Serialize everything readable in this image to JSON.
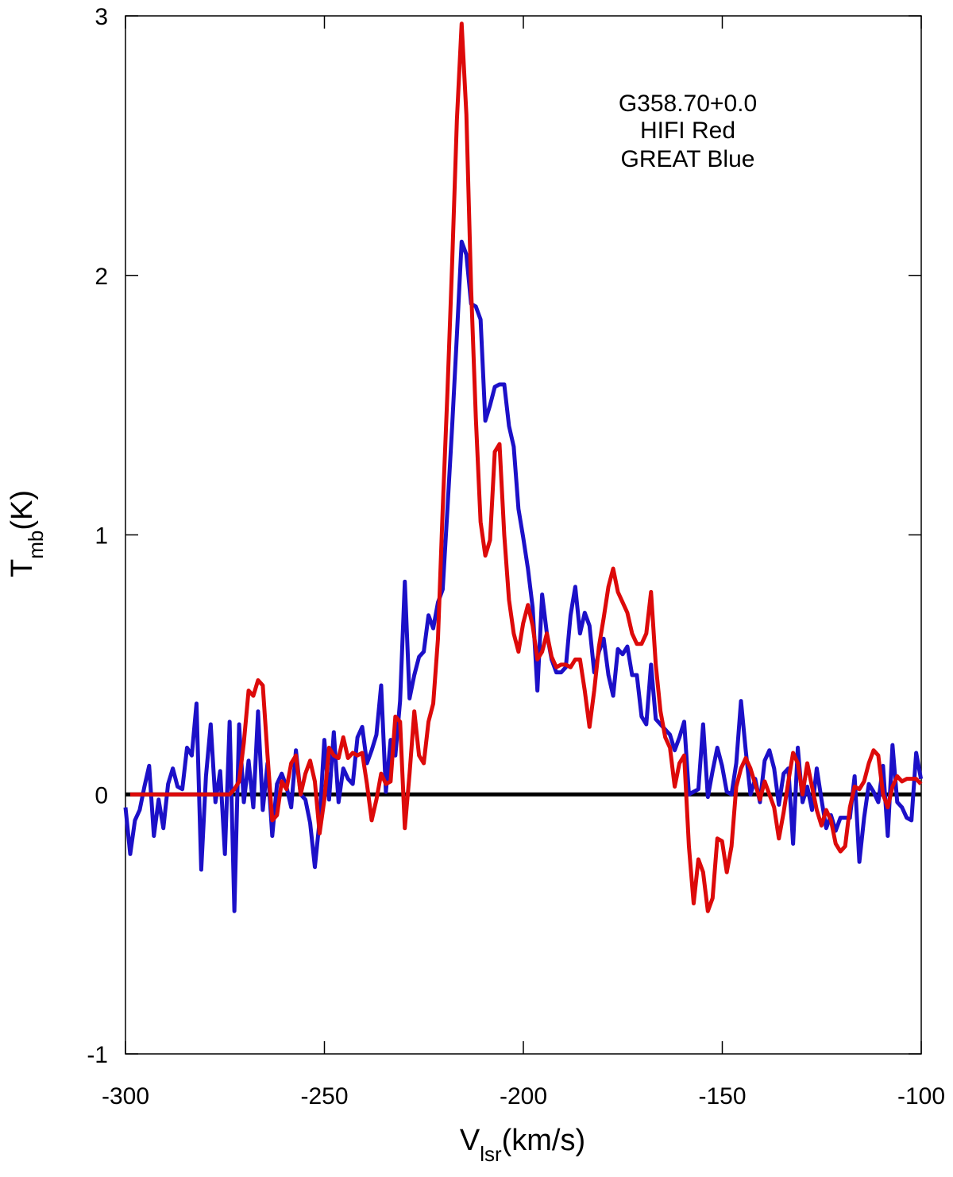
{
  "chart_data": {
    "type": "line",
    "annotation": [
      "G358.70+0.0",
      "HIFI Red",
      "GREAT Blue"
    ],
    "x_label": {
      "main": "V",
      "sub": "lsr",
      "unit": "(km/s)"
    },
    "y_label": {
      "main": "T",
      "sub": "mb",
      "unit": "(K)"
    },
    "xlim": [
      -300,
      -100
    ],
    "xticks": [
      -300,
      -250,
      -200,
      -150,
      -100
    ],
    "ylim": [
      -1,
      3
    ],
    "yticks": [
      -1,
      0,
      1,
      2,
      3
    ],
    "reference_line": {
      "value": 0,
      "color": "#000000"
    },
    "x": [
      -300,
      -298.81,
      -297.62,
      -296.43,
      -295.24,
      -294.05,
      -292.86,
      -291.67,
      -290.48,
      -289.29,
      -288.1,
      -286.91,
      -285.72,
      -284.53,
      -283.34,
      -282.15,
      -280.96,
      -279.77,
      -278.58,
      -277.39,
      -276.2,
      -275.01,
      -273.82,
      -272.63,
      -271.44,
      -270.25,
      -269.06,
      -267.87,
      -266.68,
      -265.49,
      -264.3,
      -263.11,
      -261.92,
      -260.73,
      -259.54,
      -258.35,
      -257.16,
      -255.97,
      -254.78,
      -253.59,
      -252.4,
      -251.21,
      -250.02,
      -248.83,
      -247.64,
      -246.45,
      -245.26,
      -244.07,
      -242.88,
      -241.69,
      -240.5,
      -239.31,
      -238.12,
      -236.93,
      -235.74,
      -234.55,
      -233.36,
      -232.17,
      -230.98,
      -229.79,
      -228.6,
      -227.41,
      -226.22,
      -225.03,
      -223.84,
      -222.65,
      -221.46,
      -220.27,
      -219.08,
      -217.89,
      -216.7,
      -215.51,
      -214.32,
      -213.13,
      -211.94,
      -210.75,
      -209.56,
      -208.37,
      -207.18,
      -205.99,
      -204.8,
      -203.61,
      -202.42,
      -201.23,
      -200.04,
      -198.85,
      -197.66,
      -196.47,
      -195.28,
      -194.09,
      -192.9,
      -191.71,
      -190.52,
      -189.33,
      -188.14,
      -186.95,
      -185.76,
      -184.57,
      -183.38,
      -182.19,
      -181,
      -179.81,
      -178.62,
      -177.43,
      -176.24,
      -175.05,
      -173.86,
      -172.67,
      -171.48,
      -170.29,
      -169.1,
      -167.91,
      -166.72,
      -165.53,
      -164.34,
      -163.15,
      -161.96,
      -160.77,
      -159.58,
      -158.39,
      -157.2,
      -156.01,
      -154.82,
      -153.63,
      -152.44,
      -151.25,
      -150.06,
      -148.87,
      -147.68,
      -146.49,
      -145.3,
      -144.11,
      -142.92,
      -141.73,
      -140.54,
      -139.35,
      -138.16,
      -136.97,
      -135.78,
      -134.59,
      -133.4,
      -132.21,
      -131.02,
      -129.83,
      -128.64,
      -127.45,
      -126.26,
      -125.07,
      -123.88,
      -122.69,
      -121.5,
      -120.31,
      -119.12,
      -117.93,
      -116.74,
      -115.55,
      -114.36,
      -113.17,
      -111.98,
      -110.79,
      -109.6,
      -108.41,
      -107.22,
      -106.03,
      -104.84,
      -103.65,
      -102.46,
      -101.27,
      -100.08
    ],
    "series": [
      {
        "color": "#1c10c8",
        "values": [
          -0.05,
          -0.23,
          -0.1,
          -0.06,
          0.03,
          0.11,
          -0.16,
          -0.02,
          -0.13,
          0.04,
          0.1,
          0.03,
          0.02,
          0.18,
          0.15,
          0.35,
          -0.29,
          0.07,
          0.27,
          -0.03,
          0.09,
          -0.23,
          0.28,
          -0.45,
          0.27,
          -0.03,
          0.13,
          -0.05,
          0.32,
          -0.06,
          0.12,
          -0.16,
          0.04,
          0.08,
          0.03,
          -0.05,
          0.17,
          0,
          -0.02,
          -0.11,
          -0.28,
          -0.1,
          0.21,
          -0.02,
          0.24,
          -0.03,
          0.1,
          0.06,
          0.04,
          0.22,
          0.26,
          0.12,
          0.17,
          0.23,
          0.42,
          0.01,
          0.21,
          0.15,
          0.36,
          0.82,
          0.37,
          0.46,
          0.53,
          0.55,
          0.69,
          0.64,
          0.74,
          0.79,
          1.1,
          1.42,
          1.77,
          2.13,
          2.08,
          1.89,
          1.88,
          1.83,
          1.44,
          1.5,
          1.57,
          1.58,
          1.58,
          1.42,
          1.34,
          1.1,
          0.99,
          0.87,
          0.72,
          0.4,
          0.77,
          0.62,
          0.52,
          0.47,
          0.47,
          0.49,
          0.69,
          0.8,
          0.62,
          0.7,
          0.65,
          0.47,
          0.55,
          0.6,
          0.46,
          0.38,
          0.56,
          0.54,
          0.57,
          0.46,
          0.46,
          0.3,
          0.27,
          0.5,
          0.29,
          0.27,
          0.25,
          0.23,
          0.17,
          0.22,
          0.28,
          0,
          0.01,
          0.02,
          0.27,
          -0.01,
          0.09,
          0.18,
          0.11,
          0.01,
          0,
          0.12,
          0.36,
          0.17,
          0,
          0.06,
          -0.03,
          0.13,
          0.17,
          0.1,
          -0.04,
          0.08,
          0.1,
          -0.19,
          0.18,
          -0.03,
          0.03,
          -0.06,
          0.1,
          -0.02,
          -0.13,
          -0.08,
          -0.14,
          -0.09,
          -0.09,
          -0.09,
          0.07,
          -0.26,
          -0.09,
          0.04,
          0.01,
          -0.03,
          0.11,
          -0.16,
          0.19,
          -0.03,
          -0.05,
          -0.09,
          -0.1,
          0.16,
          0.06
        ]
      },
      {
        "color": "#dd0a0a",
        "values": [
          null,
          0,
          0,
          0,
          0,
          0,
          0,
          0,
          0,
          0,
          0,
          0,
          0,
          0,
          0,
          0,
          0,
          0,
          0,
          0,
          0,
          0,
          0,
          0.02,
          0.05,
          0.2,
          0.4,
          0.38,
          0.44,
          0.42,
          0.15,
          -0.1,
          -0.08,
          0.05,
          0.02,
          0.12,
          0.15,
          0,
          0.08,
          0.13,
          0.05,
          -0.15,
          -0.02,
          0.18,
          0.15,
          0.14,
          0.22,
          0.14,
          0.16,
          0.15,
          0.16,
          0.04,
          -0.1,
          -0.02,
          0.08,
          0.04,
          0.05,
          0.3,
          0.28,
          -0.13,
          0.08,
          0.32,
          0.15,
          0.12,
          0.28,
          0.35,
          0.6,
          1.1,
          1.55,
          2.05,
          2.6,
          2.97,
          2.62,
          1.95,
          1.45,
          1.05,
          0.92,
          0.98,
          1.32,
          1.35,
          1,
          0.75,
          0.62,
          0.55,
          0.66,
          0.73,
          0.65,
          0.52,
          0.55,
          0.62,
          0.53,
          0.49,
          0.5,
          0.5,
          0.49,
          0.52,
          0.52,
          0.4,
          0.26,
          0.4,
          0.57,
          0.68,
          0.8,
          0.87,
          0.78,
          0.74,
          0.7,
          0.62,
          0.58,
          0.58,
          0.62,
          0.78,
          0.5,
          0.32,
          0.22,
          0.18,
          0.03,
          0.12,
          0.15,
          -0.2,
          -0.42,
          -0.25,
          -0.3,
          -0.45,
          -0.4,
          -0.17,
          -0.18,
          -0.3,
          -0.2,
          0.03,
          0.1,
          0.14,
          0.1,
          0.04,
          -0.02,
          0.05,
          0,
          -0.05,
          -0.17,
          -0.07,
          0.05,
          0.16,
          0.12,
          0,
          0.12,
          0.03,
          -0.06,
          -0.12,
          -0.06,
          -0.1,
          -0.19,
          -0.22,
          -0.2,
          -0.05,
          0.03,
          0.02,
          0.05,
          0.12,
          0.17,
          0.15,
          0,
          -0.05,
          0.03,
          0.07,
          0.05,
          0.06,
          0.06,
          0.06,
          0.04
        ]
      }
    ]
  }
}
